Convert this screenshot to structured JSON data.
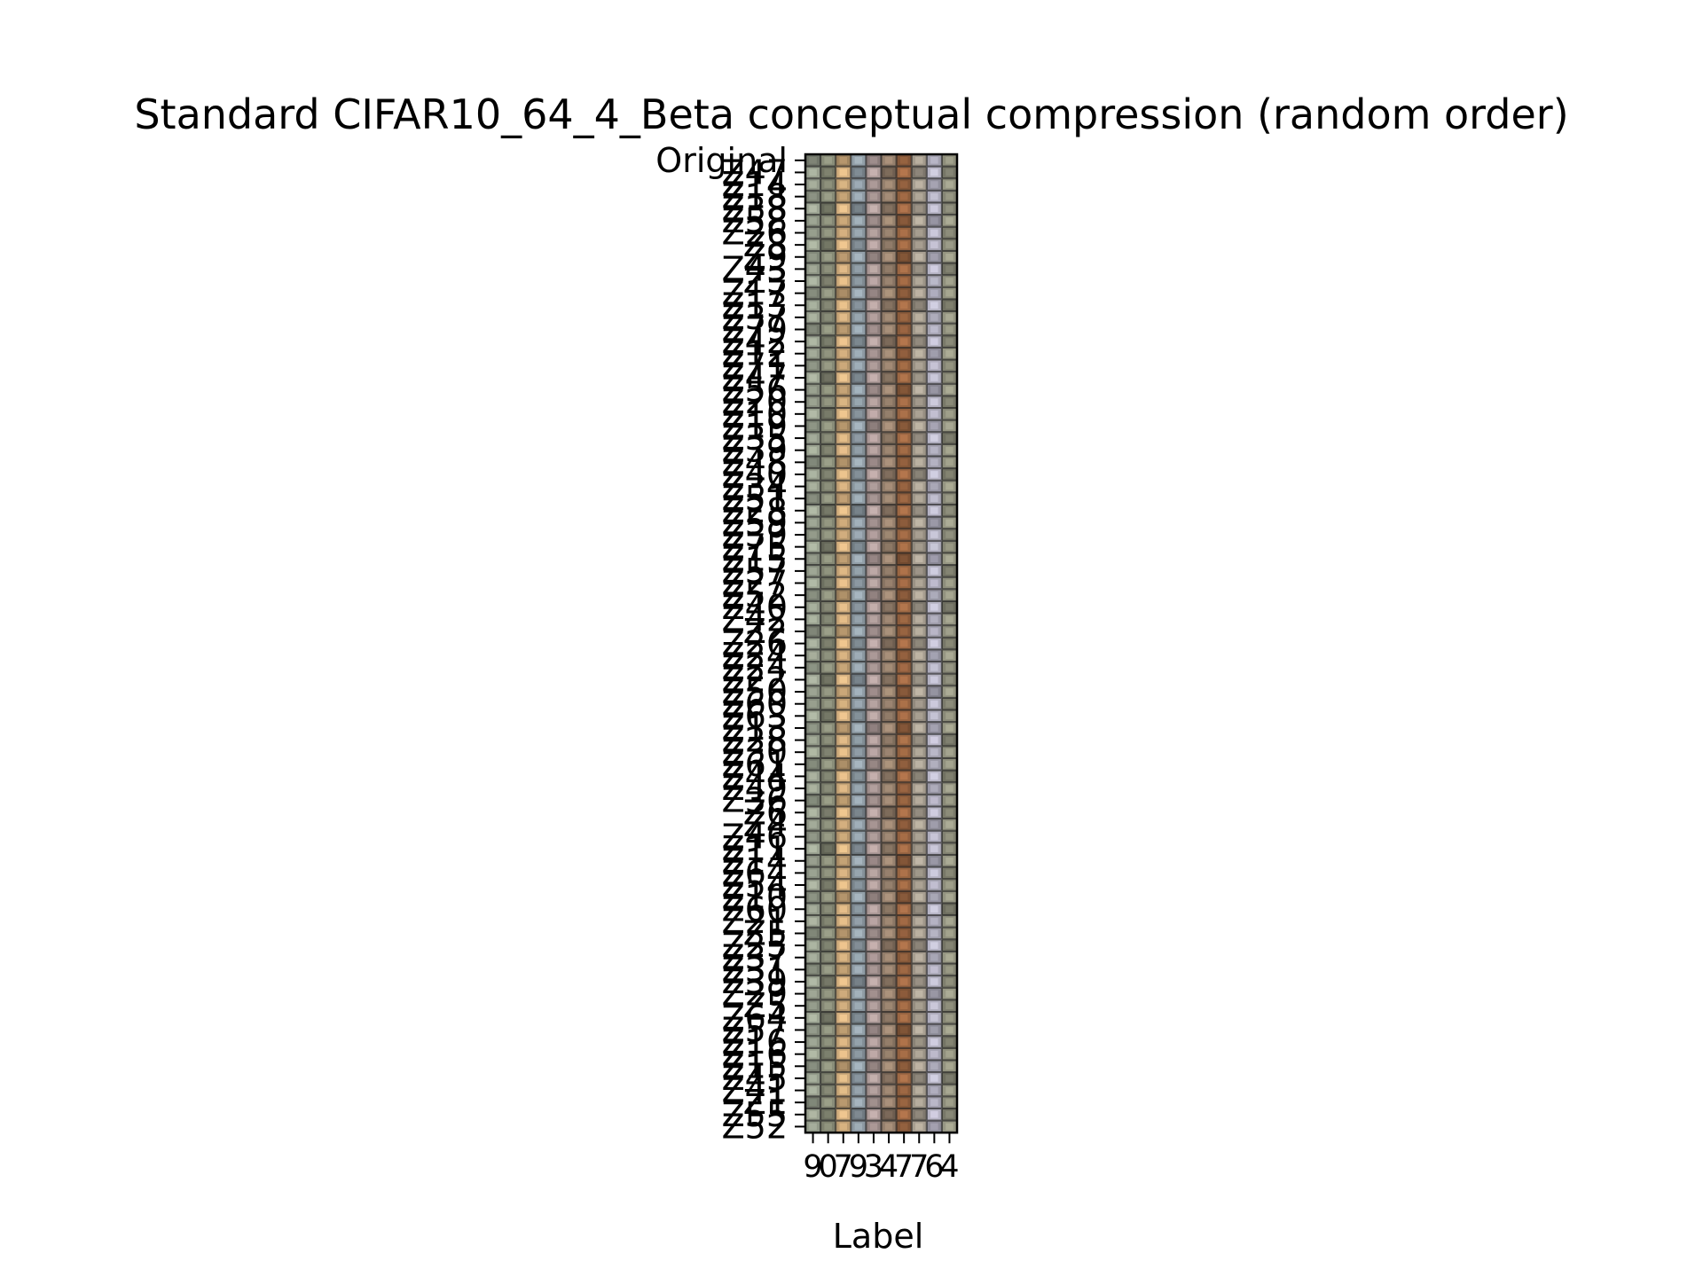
{
  "chart_data": {
    "type": "heatmap",
    "title": "Standard CIFAR10_64_4_Beta conceptual compression (random order)",
    "xlabel": "Label",
    "ylabel": "",
    "x_tick_labels": [
      "9",
      "0",
      "7",
      "9",
      "3",
      "4",
      "7",
      "7",
      "6",
      "4"
    ],
    "y_tick_labels": [
      "Original",
      "Z47",
      "Z14",
      "Z18",
      "Z38",
      "Z58",
      "Z26",
      "Z8",
      "Z9",
      "Z43",
      "Z3",
      "Z17",
      "Z13",
      "Z37",
      "Z79",
      "Z42",
      "Z12",
      "Z71",
      "Z47",
      "Z56",
      "Z20",
      "Z10",
      "Z19",
      "Z35",
      "Z39",
      "Z48",
      "Z40",
      "Z34",
      "Z51",
      "Z28",
      "Z59",
      "Z39",
      "Z75",
      "Z15",
      "Z57",
      "Z27",
      "Z52",
      "Z40",
      "Z42",
      "Z2",
      "Z26",
      "Z24",
      "Z24",
      "Z22",
      "Z50",
      "Z60",
      "Z63",
      "Z13",
      "Z28",
      "Z30",
      "Z61",
      "Z44",
      "Z49",
      "Z36",
      "Z6",
      "Z4",
      "Z46",
      "Z11",
      "Z14",
      "Z64",
      "Z54",
      "Z10",
      "Z60",
      "Z21",
      "Z5",
      "Z25",
      "Z37",
      "Z31",
      "Z39",
      "Z29",
      "Z5",
      "Z64",
      "Z57",
      "Z16",
      "Z16",
      "Z15",
      "Z45",
      "Z41",
      "Z1",
      "Z55",
      "Z52"
    ],
    "column_colors": [
      "#8f9686",
      "#7d806e",
      "#c1a074",
      "#86929a",
      "#9f8e8c",
      "#8b7765",
      "#905f3e",
      "#9a9285",
      "#a8a6b5",
      "#8a8a78"
    ],
    "grid": false,
    "legend": "none"
  }
}
